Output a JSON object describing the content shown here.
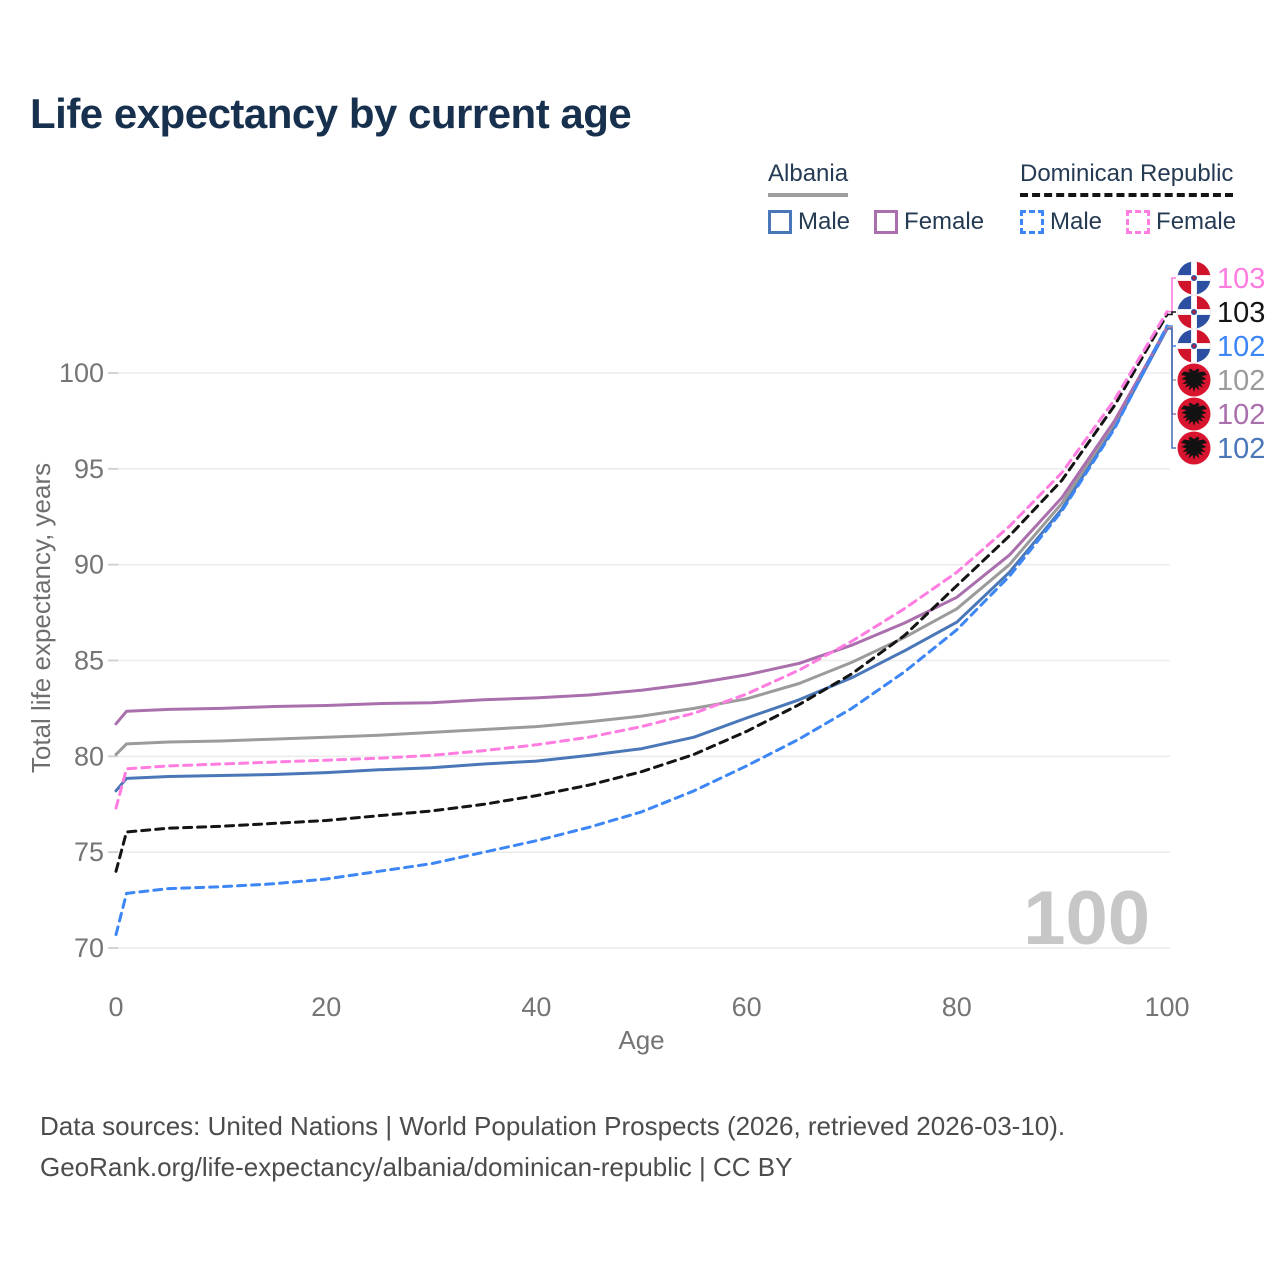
{
  "title": "Life expectancy by current age",
  "legend": {
    "groups": [
      {
        "country": "Albania",
        "underline": "solid",
        "underline_color": "#9e9e9e",
        "items": [
          {
            "label": "Male",
            "color": "#4a77b8",
            "dash": false
          },
          {
            "label": "Female",
            "color": "#aa6fad",
            "dash": false
          }
        ]
      },
      {
        "country": "Dominican Republic",
        "underline": "dashed",
        "underline_color": "#141414",
        "items": [
          {
            "label": "Male",
            "color": "#3d86f5",
            "dash": true
          },
          {
            "label": "Female",
            "color": "#ff7ce0",
            "dash": true
          }
        ]
      }
    ]
  },
  "watermark": "100",
  "footer": {
    "line1": "Data sources: United Nations | World Population Prospects (2026, retrieved 2026-03-10).",
    "line2": "GeoRank.org/life-expectancy/albania/dominican-republic | CC BY"
  },
  "chart_data": {
    "type": "line",
    "title": "Life expectancy by current age",
    "xlabel": "Age",
    "ylabel": "Total life expectancy, years",
    "xlim": [
      0,
      100
    ],
    "ylim": [
      70,
      103.5
    ],
    "x_ticks": [
      0,
      20,
      40,
      60,
      80,
      100
    ],
    "y_ticks": [
      70,
      75,
      80,
      85,
      90,
      95,
      100
    ],
    "grid": true,
    "legend_position": "top-right",
    "x": [
      0,
      1,
      5,
      10,
      15,
      20,
      25,
      30,
      35,
      40,
      45,
      50,
      55,
      60,
      65,
      70,
      75,
      80,
      85,
      90,
      95,
      100
    ],
    "series": [
      {
        "id": "al-male",
        "name": "Albania Male",
        "country": "Albania",
        "sex": "Male",
        "color": "#4a77b8",
        "dash": false,
        "end_label": "102",
        "values": [
          78.2,
          78.85,
          78.95,
          79.0,
          79.05,
          79.15,
          79.3,
          79.4,
          79.6,
          79.75,
          80.05,
          80.4,
          81.0,
          82.0,
          82.95,
          84.1,
          85.5,
          87.0,
          89.6,
          92.9,
          97.2,
          102.3
        ]
      },
      {
        "id": "al-total",
        "name": "Albania Both sexes",
        "country": "Albania",
        "sex": "Both",
        "color": "#9b9b9b",
        "dash": false,
        "end_label": "102",
        "values": [
          80.1,
          80.65,
          80.75,
          80.8,
          80.9,
          81.0,
          81.1,
          81.25,
          81.4,
          81.55,
          81.8,
          82.1,
          82.5,
          83.0,
          83.8,
          84.9,
          86.2,
          87.7,
          90.0,
          93.2,
          97.4,
          102.4
        ]
      },
      {
        "id": "al-female",
        "name": "Albania Female",
        "country": "Albania",
        "sex": "Female",
        "color": "#aa6fad",
        "dash": false,
        "end_label": "102",
        "values": [
          81.7,
          82.35,
          82.45,
          82.5,
          82.6,
          82.65,
          82.75,
          82.8,
          82.95,
          83.05,
          83.2,
          83.45,
          83.8,
          84.25,
          84.85,
          85.8,
          86.95,
          88.3,
          90.5,
          93.5,
          97.5,
          102.35
        ]
      },
      {
        "id": "dr-male",
        "name": "Dominican Republic Male",
        "country": "Dominican Republic",
        "sex": "Male",
        "color": "#3d86f5",
        "dash": true,
        "end_label": "102",
        "values": [
          70.7,
          72.85,
          73.1,
          73.2,
          73.35,
          73.6,
          74.0,
          74.4,
          75.0,
          75.6,
          76.3,
          77.1,
          78.2,
          79.5,
          80.9,
          82.5,
          84.4,
          86.6,
          89.4,
          92.8,
          97.1,
          102.45
        ]
      },
      {
        "id": "dr-total",
        "name": "Dominican Republic Both sexes",
        "country": "Dominican Republic",
        "sex": "Both",
        "color": "#141414",
        "dash": true,
        "end_label": "103",
        "values": [
          74.0,
          76.05,
          76.25,
          76.35,
          76.5,
          76.65,
          76.9,
          77.15,
          77.5,
          77.95,
          78.5,
          79.2,
          80.1,
          81.3,
          82.7,
          84.3,
          86.3,
          88.9,
          91.5,
          94.4,
          98.3,
          103.05
        ]
      },
      {
        "id": "dr-female",
        "name": "Dominican Republic Female",
        "country": "Dominican Republic",
        "sex": "Female",
        "color": "#ff7ce0",
        "dash": true,
        "end_label": "103",
        "values": [
          77.3,
          79.35,
          79.5,
          79.6,
          79.7,
          79.8,
          79.9,
          80.05,
          80.3,
          80.6,
          81.0,
          81.55,
          82.25,
          83.25,
          84.5,
          86.0,
          87.7,
          89.6,
          92.0,
          94.8,
          98.6,
          103.2
        ]
      }
    ],
    "end_labels": [
      {
        "series": "dr-female",
        "text": "103",
        "flag": "dr"
      },
      {
        "series": "dr-total",
        "text": "103",
        "flag": "dr"
      },
      {
        "series": "dr-male",
        "text": "102",
        "flag": "dr"
      },
      {
        "series": "al-total",
        "text": "102",
        "flag": "al"
      },
      {
        "series": "al-female",
        "text": "102",
        "flag": "al"
      },
      {
        "series": "al-male",
        "text": "102",
        "flag": "al"
      }
    ]
  }
}
